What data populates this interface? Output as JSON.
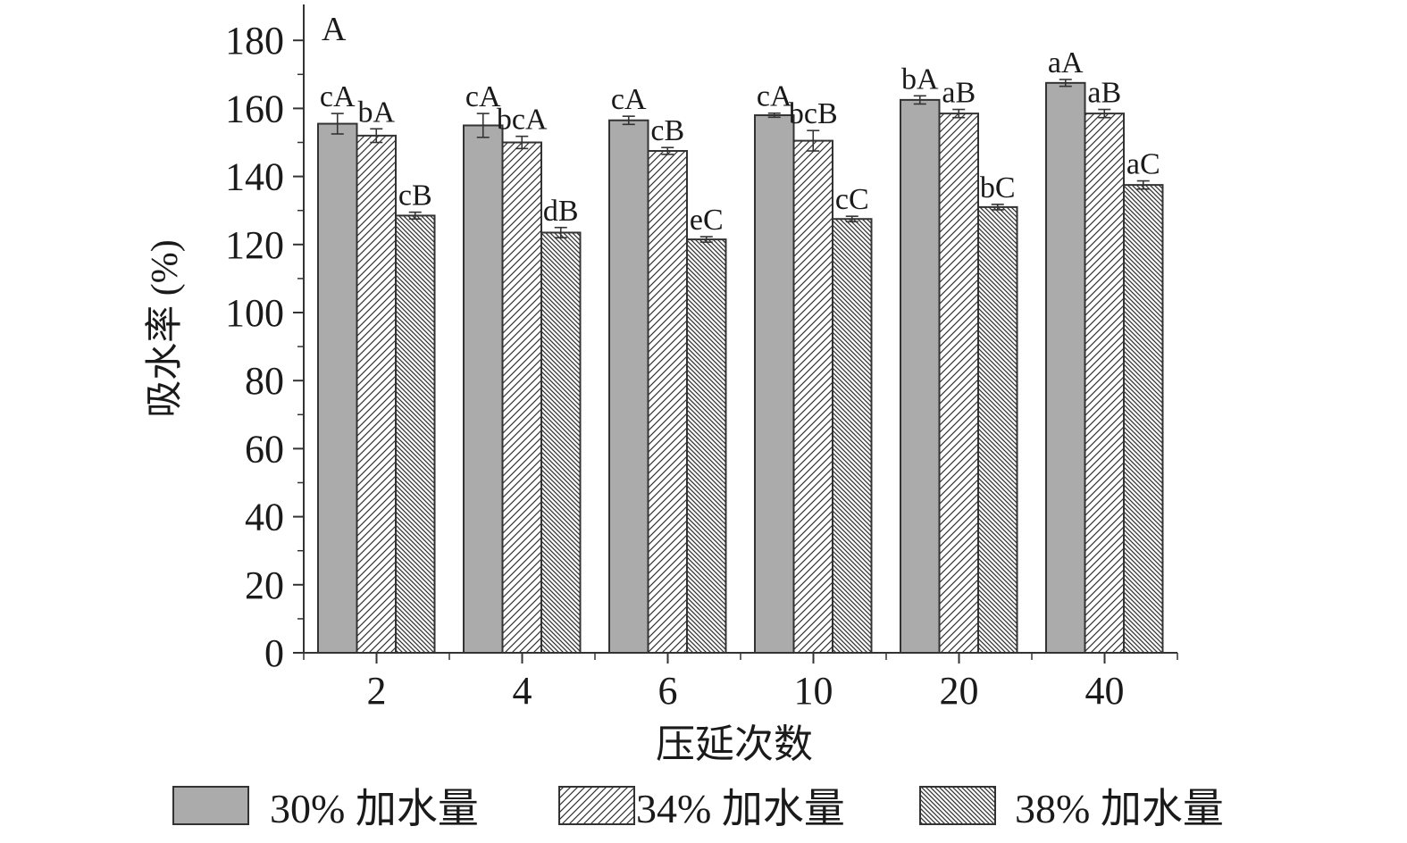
{
  "chart_data": {
    "type": "bar",
    "panel_label": "A",
    "xlabel": "压延次数",
    "ylabel": "吸水率 (%)",
    "categories": [
      "2",
      "4",
      "6",
      "10",
      "20",
      "40"
    ],
    "ylim": [
      0,
      190
    ],
    "yticks": [
      0,
      20,
      40,
      60,
      80,
      100,
      120,
      140,
      160,
      180
    ],
    "grid": false,
    "legend_position": "bottom",
    "series": [
      {
        "name": "30% 加水量",
        "pattern": "solid-gray",
        "color": "#ababab",
        "values": [
          155.5,
          155.0,
          156.5,
          158.0,
          162.5,
          167.5
        ],
        "errors": [
          3.0,
          3.5,
          1.2,
          0.6,
          1.2,
          1.0
        ],
        "labels": [
          "cA",
          "cA",
          "cA",
          "cA",
          "bA",
          "aA"
        ]
      },
      {
        "name": "34% 加水量",
        "pattern": "diagonal-hatch",
        "color": "#ffffff",
        "values": [
          152.0,
          150.0,
          147.5,
          150.5,
          158.5,
          158.5
        ],
        "errors": [
          2.0,
          1.8,
          1.0,
          3.0,
          1.2,
          1.2
        ],
        "labels": [
          "bA",
          "bcA",
          "cB",
          "bcB",
          "aB",
          "aB"
        ]
      },
      {
        "name": "38% 加水量",
        "pattern": "dense-backslash-hatch",
        "color": "#ffffff",
        "values": [
          128.5,
          123.5,
          121.5,
          127.5,
          131.0,
          137.5
        ],
        "errors": [
          1.0,
          1.5,
          0.8,
          0.8,
          0.8,
          1.2
        ],
        "labels": [
          "cB",
          "dB",
          "eC",
          "cC",
          "bC",
          "aC"
        ]
      }
    ]
  }
}
